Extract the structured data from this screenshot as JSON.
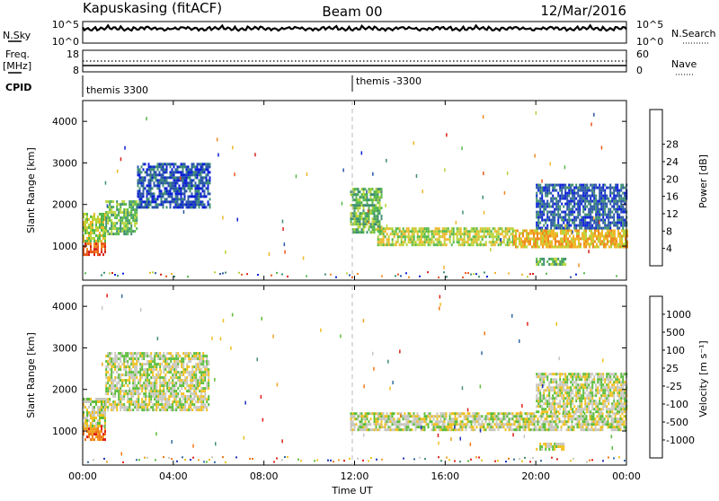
{
  "header": {
    "station": "Kapuskasing (fitACF)",
    "beam": "Beam 00",
    "date": "12/Mar/2016"
  },
  "nsky_panel": {
    "left_label": "N.Sky",
    "right_label": "N.Search",
    "ytick_top": "10^5",
    "ytick_bottom": "10^0",
    "rtick_top": "10^5",
    "rtick_bottom": "10^0"
  },
  "freq_panel": {
    "left_label_1": "Freq.",
    "left_label_2": "[MHz]",
    "ytick_top": "18",
    "ytick_bottom": "8",
    "right_label": "Nave",
    "rtick_top": "60",
    "rtick_bottom": "0"
  },
  "cpid_panel": {
    "label": "CPID",
    "segments": [
      "themis 3300",
      "themis -3300"
    ]
  },
  "power_panel": {
    "ylabel": "Slant Range [km]",
    "cbar_label": "Power [dB]"
  },
  "velocity_panel": {
    "ylabel": "Slant Range [km]",
    "cbar_label": "Velocity [m s⁻¹]"
  },
  "xaxis": {
    "label": "Time UT",
    "ticks": [
      "00:00",
      "04:00",
      "08:00",
      "12:00",
      "16:00",
      "20:00",
      "00:00"
    ]
  },
  "chart_data": [
    {
      "type": "heatmap",
      "name": "power",
      "x_range": [
        0,
        24
      ],
      "y_range": [
        180,
        4500
      ],
      "yticks": [
        1000,
        2000,
        3000,
        4000
      ],
      "colorbar": {
        "ticks": [
          "4",
          "8",
          "12",
          "16",
          "20",
          "24",
          "28"
        ],
        "colors": [
          "#0b1fd8",
          "#2a56a8",
          "#3f8f72",
          "#55b84a",
          "#b8d43a",
          "#f0b72a",
          "#f08a20",
          "#e8581a",
          "#d8221a"
        ]
      },
      "regions": [
        {
          "t": [
            0.0,
            1.0
          ],
          "r": [
            800,
            1150
          ],
          "level": 7
        },
        {
          "t": [
            0.0,
            1.0
          ],
          "r": [
            1150,
            1800
          ],
          "level": 4
        },
        {
          "t": [
            1.0,
            2.4
          ],
          "r": [
            1300,
            2100
          ],
          "level": 3
        },
        {
          "t": [
            2.4,
            5.6
          ],
          "r": [
            1900,
            3000
          ],
          "level": 1
        },
        {
          "t": [
            11.8,
            13.2
          ],
          "r": [
            1300,
            2400
          ],
          "level": 3
        },
        {
          "t": [
            13.0,
            19.0
          ],
          "r": [
            1050,
            1450
          ],
          "level": 4
        },
        {
          "t": [
            19.0,
            24.0
          ],
          "r": [
            1000,
            1400
          ],
          "level": 5
        },
        {
          "t": [
            20.0,
            21.3
          ],
          "r": [
            580,
            720
          ],
          "level": 3
        },
        {
          "t": [
            20.0,
            24.0
          ],
          "r": [
            1450,
            2500
          ],
          "level": 1
        }
      ]
    },
    {
      "type": "heatmap",
      "name": "velocity",
      "x_range": [
        0,
        24
      ],
      "y_range": [
        180,
        4500
      ],
      "yticks": [
        1000,
        2000,
        3000,
        4000
      ],
      "colorbar": {
        "ticks": [
          "1000",
          "500",
          "100",
          "25",
          "-25",
          "-100",
          "-500",
          "-1000"
        ],
        "colors": [
          "#1a2fb8",
          "#2f6aa0",
          "#3f8f72",
          "#5bbd3a",
          "#c8c8c0",
          "#f0c020",
          "#f0a020",
          "#f07818",
          "#e02018"
        ]
      },
      "regions": [
        {
          "t": [
            0.0,
            1.0
          ],
          "r": [
            800,
            1150
          ],
          "level": 7
        },
        {
          "t": [
            0.0,
            1.0
          ],
          "r": [
            1150,
            1800
          ],
          "level": 4
        },
        {
          "t": [
            1.0,
            5.6
          ],
          "r": [
            1500,
            2900
          ],
          "level": 4
        },
        {
          "t": [
            11.8,
            24.0
          ],
          "r": [
            1050,
            1450
          ],
          "level": 4
        },
        {
          "t": [
            20.0,
            24.0
          ],
          "r": [
            1450,
            2400
          ],
          "level": 4
        },
        {
          "t": [
            20.0,
            21.3
          ],
          "r": [
            580,
            720
          ],
          "level": 4
        }
      ]
    }
  ]
}
